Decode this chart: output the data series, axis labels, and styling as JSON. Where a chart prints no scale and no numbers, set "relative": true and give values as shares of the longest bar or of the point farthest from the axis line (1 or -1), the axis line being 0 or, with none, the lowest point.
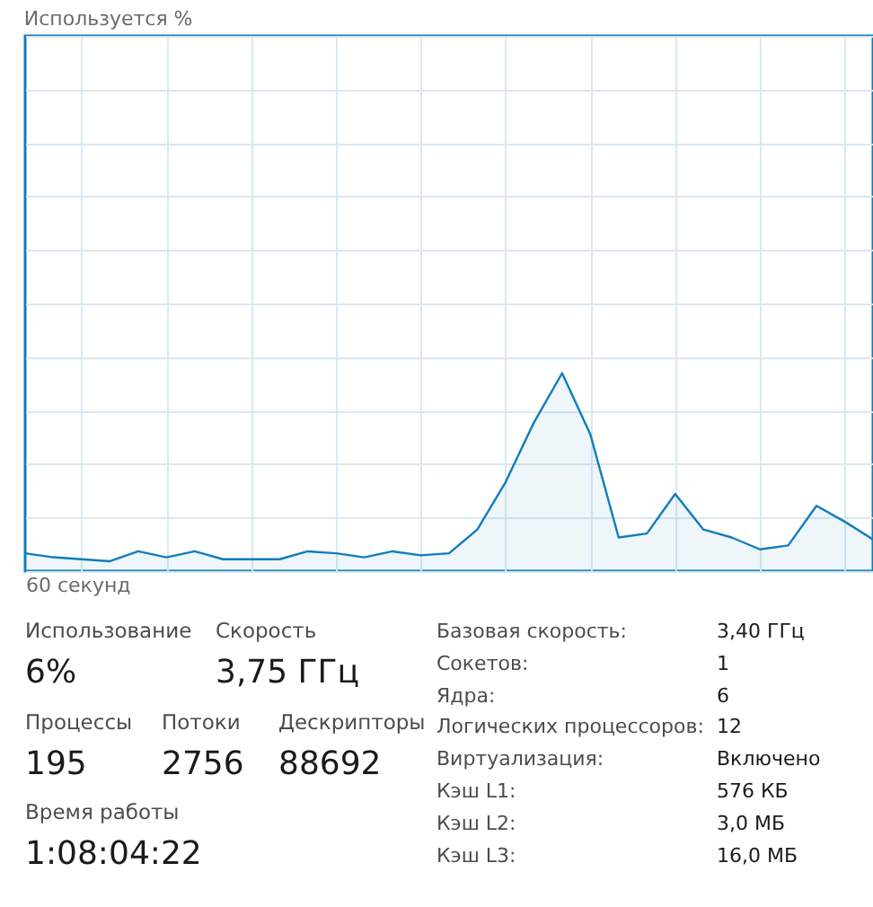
{
  "chart_data": [
    {
      "type": "area",
      "title": "Используется %",
      "xlabel": "60 секунд",
      "relative": true,
      "grid": true,
      "categories": [
        null,
        null,
        null,
        null,
        null,
        null,
        null,
        null,
        null,
        null,
        null,
        null,
        null,
        null,
        null,
        null,
        null,
        null,
        null,
        null,
        null,
        null,
        null,
        null,
        null,
        null,
        null,
        null,
        null,
        null,
        null
      ],
      "series": [
        {
          "color": "#117dbb",
          "values": [
            0.09,
            0.07,
            0.06,
            0.05,
            0.1,
            0.07,
            0.1,
            0.06,
            0.06,
            0.06,
            0.1,
            0.09,
            0.07,
            0.1,
            0.08,
            0.09,
            0.21,
            0.45,
            0.75,
            1,
            0.69,
            0.17,
            0.19,
            0.39,
            0.21,
            0.17,
            0.11,
            0.13,
            0.33,
            0.25,
            0.16
          ]
        }
      ]
    },
    {
      "type": "other",
      "annotations": [
        "Использование",
        "6%",
        "Скорость",
        "3,75 ГГц",
        "Процессы",
        "195",
        "Потоки",
        "2756",
        "Дескрипторы",
        "88692",
        "Время работы",
        "1:08:04:22",
        "Базовая скорость:",
        "3,40 ГГц",
        "Сокетов:",
        "1",
        "Ядра:",
        "6",
        "Логических процессоров:",
        "12",
        "Виртуализация:",
        "Включено",
        "Кэш L1:",
        "576 КБ",
        "Кэш L2:",
        "3,0 МБ",
        "Кэш L3:",
        "16,0 МБ"
      ]
    }
  ]
}
